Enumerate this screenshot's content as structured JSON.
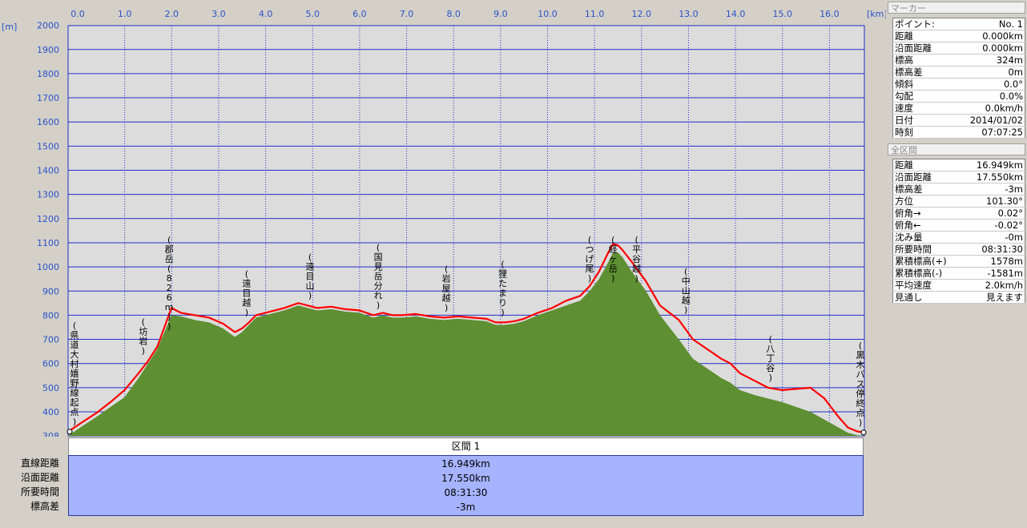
{
  "chart_data": {
    "type": "area",
    "x_unit": "[km]",
    "y_unit": "[m]",
    "xlim": [
      0,
      16.949
    ],
    "ylim": [
      308,
      2000
    ],
    "x_ticks": [
      "0.0",
      "1.0",
      "2.0",
      "3.0",
      "4.0",
      "5.0",
      "6.0",
      "7.0",
      "8.0",
      "9.0",
      "10.0",
      "11.0",
      "12.0",
      "13.0",
      "14.0",
      "15.0",
      "16.0"
    ],
    "y_ticks": [
      "308",
      "400",
      "500",
      "600",
      "700",
      "800",
      "900",
      "1000",
      "1100",
      "1200",
      "1300",
      "1400",
      "1500",
      "1600",
      "1700",
      "1800",
      "1900",
      "2000"
    ],
    "grid": true,
    "colors": {
      "plot_bg": "#dcdcdc",
      "ground": "#5e8f32",
      "route": "#ff0000",
      "grid": "#2030c8",
      "axis_text": "#2a52c8"
    },
    "series": [
      {
        "kind": "ground",
        "x": [
          0.0,
          0.3,
          0.6,
          0.9,
          1.2,
          1.5,
          1.7,
          1.9,
          2.05,
          2.2,
          2.4,
          2.7,
          3.0,
          3.3,
          3.55,
          3.7,
          3.85,
          4.0,
          4.3,
          4.6,
          4.9,
          5.1,
          5.3,
          5.6,
          5.9,
          6.2,
          6.5,
          6.7,
          6.9,
          7.1,
          7.4,
          7.7,
          8.0,
          8.3,
          8.6,
          8.9,
          9.1,
          9.3,
          9.5,
          9.7,
          10.0,
          10.3,
          10.6,
          10.9,
          11.1,
          11.3,
          11.5,
          11.6,
          11.7,
          11.8,
          12.0,
          12.3,
          12.6,
          13.0,
          13.3,
          13.6,
          13.9,
          14.1,
          14.3,
          14.6,
          14.9,
          15.2,
          15.5,
          15.8,
          16.1,
          16.4,
          16.6,
          16.8,
          16.949
        ],
        "y": [
          308,
          345,
          380,
          420,
          460,
          540,
          600,
          660,
          730,
          800,
          795,
          780,
          770,
          745,
          710,
          730,
          760,
          790,
          805,
          820,
          840,
          830,
          820,
          825,
          815,
          810,
          790,
          800,
          790,
          790,
          795,
          785,
          780,
          785,
          780,
          775,
          760,
          760,
          765,
          775,
          800,
          820,
          840,
          860,
          900,
          950,
          1020,
          1060,
          1060,
          1040,
          980,
          900,
          800,
          700,
          620,
          580,
          540,
          520,
          490,
          470,
          455,
          440,
          420,
          400,
          370,
          340,
          320,
          310,
          308
        ]
      },
      {
        "kind": "route",
        "x": [
          0.0,
          0.3,
          0.6,
          0.9,
          1.2,
          1.5,
          1.7,
          1.9,
          2.05,
          2.2,
          2.4,
          2.7,
          3.0,
          3.3,
          3.55,
          3.7,
          3.85,
          4.0,
          4.3,
          4.6,
          4.9,
          5.1,
          5.3,
          5.6,
          5.9,
          6.2,
          6.5,
          6.7,
          6.9,
          7.1,
          7.4,
          7.7,
          8.0,
          8.3,
          8.6,
          8.9,
          9.1,
          9.3,
          9.5,
          9.7,
          10.0,
          10.3,
          10.6,
          10.9,
          11.1,
          11.3,
          11.5,
          11.6,
          11.7,
          11.8,
          12.0,
          12.3,
          12.6,
          13.0,
          13.3,
          13.6,
          13.9,
          14.1,
          14.3,
          14.6,
          14.9,
          15.2,
          15.5,
          15.8,
          16.1,
          16.4,
          16.6,
          16.8,
          16.949
        ],
        "y": [
          324,
          360,
          395,
          440,
          490,
          560,
          610,
          670,
          750,
          830,
          810,
          800,
          790,
          765,
          730,
          745,
          770,
          800,
          815,
          830,
          850,
          840,
          830,
          835,
          825,
          820,
          800,
          810,
          800,
          800,
          805,
          795,
          790,
          795,
          790,
          785,
          770,
          770,
          775,
          785,
          810,
          830,
          860,
          880,
          920,
          980,
          1060,
          1095,
          1090,
          1070,
          1020,
          940,
          840,
          780,
          700,
          660,
          620,
          600,
          560,
          530,
          500,
          490,
          495,
          500,
          455,
          380,
          340,
          325,
          321
        ]
      }
    ],
    "annotations": [
      {
        "text": "(県道大村嬉野線起点)",
        "x": 0.0
      },
      {
        "text": "(坊岩)",
        "x": 1.6
      },
      {
        "text": "(郡岳(826m))",
        "x": 2.15
      },
      {
        "text": "(遠目越)",
        "x": 3.8
      },
      {
        "text": "(遠目山)",
        "x": 5.15
      },
      {
        "text": "(国見岳分れ)",
        "x": 6.6
      },
      {
        "text": "(岩屋越)",
        "x": 8.05
      },
      {
        "text": "(狸たまり)",
        "x": 9.25
      },
      {
        "text": "(つげ尾)",
        "x": 11.1
      },
      {
        "text": "(経ヶ岳)",
        "x": 11.6
      },
      {
        "text": "(平谷越)",
        "x": 12.1
      },
      {
        "text": "(中山越)",
        "x": 13.15
      },
      {
        "text": "(八丁谷)",
        "x": 14.95
      },
      {
        "text": "(黒木バス停終点)",
        "x": 16.949
      }
    ]
  },
  "section": {
    "title": "区間 1"
  },
  "summary": {
    "labels": [
      "直線距離",
      "沿面距離",
      "所要時間",
      "標高差"
    ],
    "values": [
      "16.949km",
      "17.550km",
      "08:31:30",
      "-3m"
    ]
  },
  "panel": {
    "marker_title": "マーカー",
    "marker_rows": [
      [
        "ポイント:",
        "No. 1"
      ],
      [
        "距離",
        "0.000km"
      ],
      [
        "沿面距離",
        "0.000km"
      ],
      [
        "標高",
        "324m"
      ],
      [
        "標高差",
        "0m"
      ],
      [
        "傾斜",
        "0.0°"
      ],
      [
        "勾配",
        "0.0%"
      ],
      [
        "速度",
        "0.0km/h"
      ],
      [
        "日付",
        "2014/01/02"
      ],
      [
        "時刻",
        "07:07:25"
      ]
    ],
    "all_title": "全区間",
    "all_rows": [
      [
        "距離",
        "16.949km"
      ],
      [
        "沿面距離",
        "17.550km"
      ],
      [
        "標高差",
        "-3m"
      ],
      [
        "方位",
        "101.30°"
      ],
      [
        "俯角→",
        "0.02°"
      ],
      [
        "俯角←",
        "-0.02°"
      ],
      [
        "沈み量",
        "-0m"
      ],
      [
        "所要時間",
        "08:31:30"
      ],
      [
        "累積標高(+)",
        "1578m"
      ],
      [
        "累積標高(-)",
        "-1581m"
      ],
      [
        "平均速度",
        "2.0km/h"
      ],
      [
        "見通し",
        "見えます"
      ]
    ]
  }
}
